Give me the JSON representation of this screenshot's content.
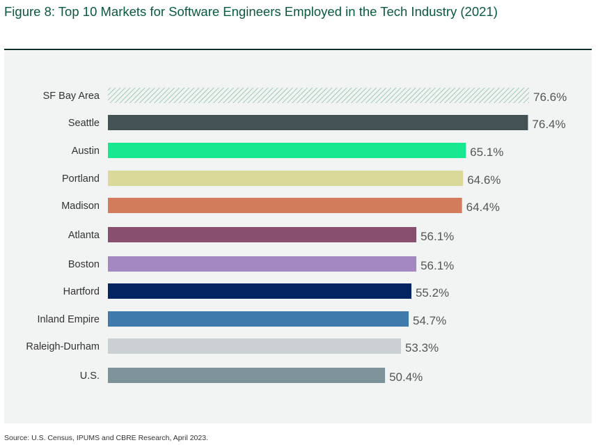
{
  "title": "Figure 8: Top 10 Markets for Software Engineers Employed in the Tech Industry (2021)",
  "source": "Source: U.S. Census, IPUMS and CBRE Research, April 2023.",
  "chart_data": {
    "type": "bar",
    "orientation": "horizontal",
    "categories": [
      "SF Bay Area",
      "Seattle",
      "Austin",
      "Portland",
      "Madison",
      "Atlanta",
      "Boston",
      "Hartford",
      "Inland Empire",
      "Raleigh-Durham",
      "U.S."
    ],
    "values": [
      76.6,
      76.4,
      65.1,
      64.6,
      64.4,
      56.1,
      56.1,
      55.2,
      54.7,
      53.3,
      50.4
    ],
    "value_labels": [
      "76.6%",
      "76.4%",
      "65.1%",
      "64.6%",
      "64.4%",
      "56.1%",
      "56.1%",
      "55.2%",
      "54.7%",
      "53.3%",
      "50.4%"
    ],
    "colors": [
      "#b7d8c8",
      "#435254",
      "#17e88f",
      "#dbd99a",
      "#d27c5c",
      "#884f6f",
      "#a388c1",
      "#032461",
      "#3e7aab",
      "#cbd1d3",
      "#7e929a"
    ],
    "patterns": [
      "hatched",
      "solid",
      "solid",
      "solid",
      "solid",
      "solid",
      "solid",
      "solid",
      "solid",
      "solid",
      "solid"
    ],
    "xlim": [
      0,
      76.6
    ],
    "grid": false,
    "legend": "none"
  }
}
